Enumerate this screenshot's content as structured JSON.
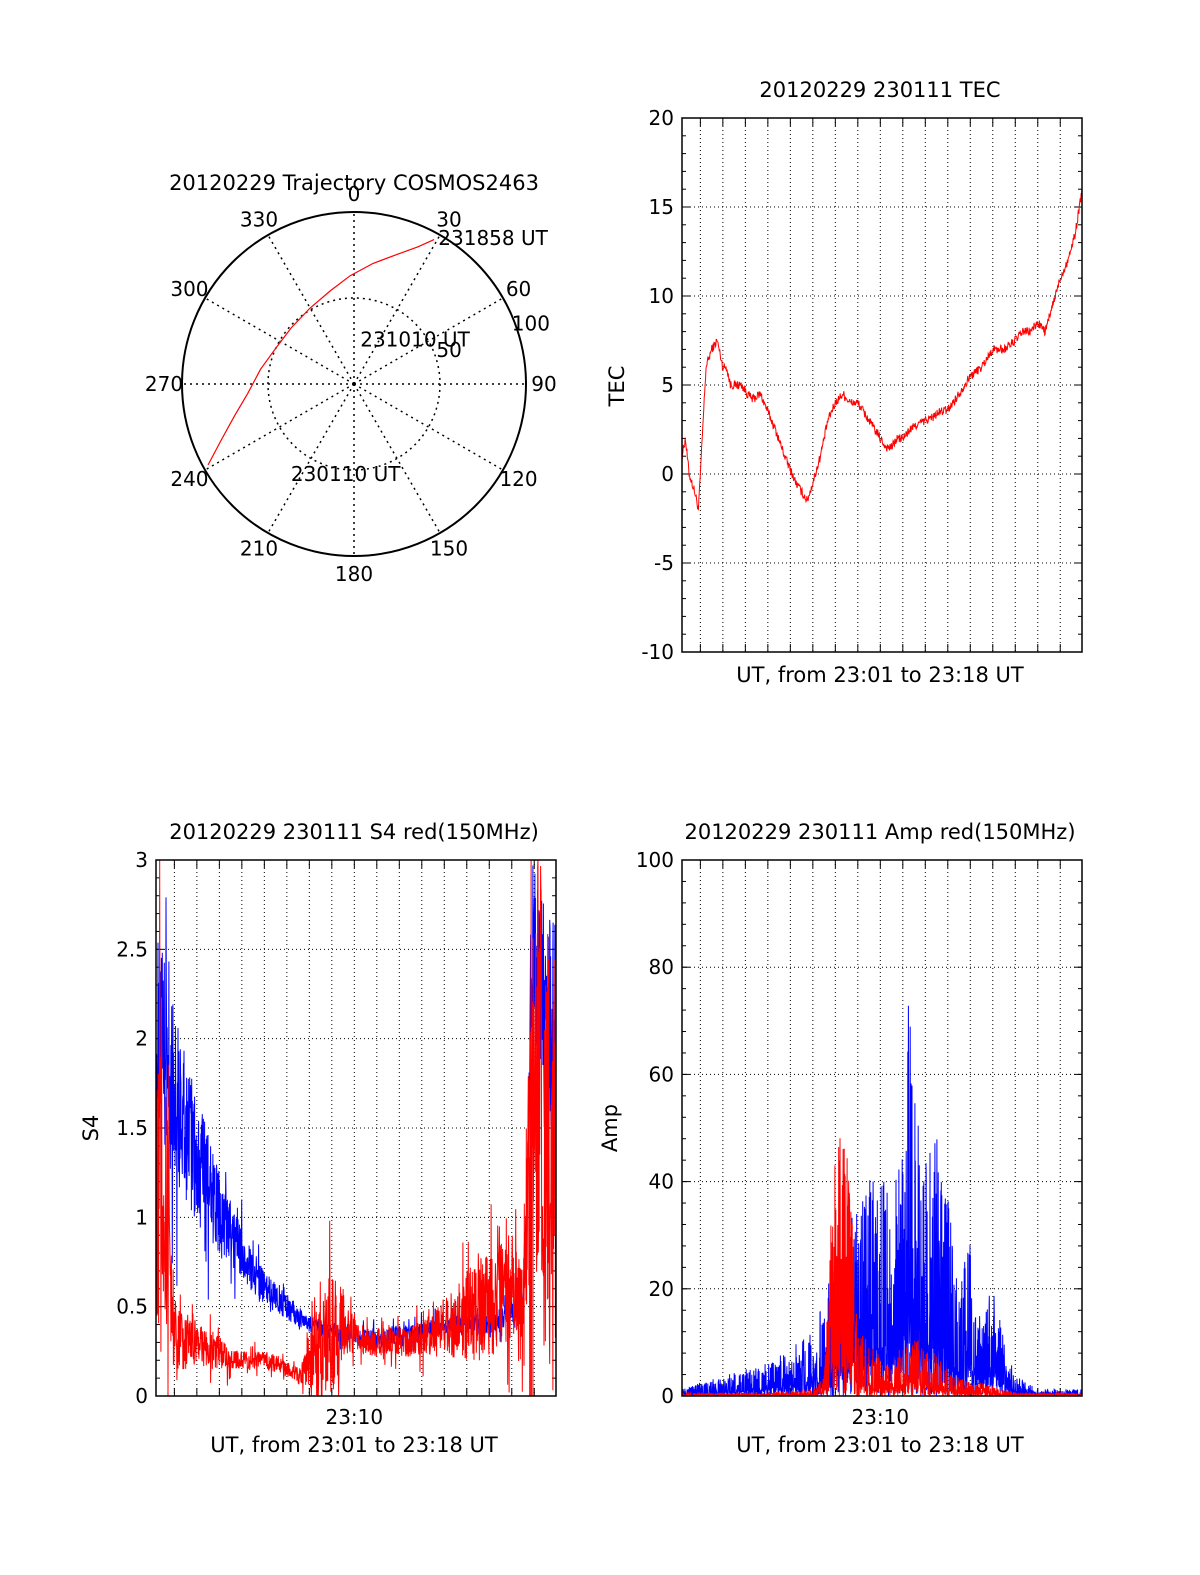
{
  "chart_data": [
    {
      "type": "polar",
      "title": "20120229 Trajectory COSMOS2463",
      "angle_ticks": [
        0,
        30,
        60,
        90,
        120,
        150,
        180,
        210,
        240,
        270,
        300,
        330
      ],
      "angle_labels": [
        "0",
        "30",
        "60",
        "90",
        "120",
        "150",
        "180",
        "210",
        "240",
        "270",
        "300",
        "330"
      ],
      "radial_ticks": [
        50,
        100
      ],
      "radial_labels": [
        "50",
        "100"
      ],
      "rlim": [
        0,
        100
      ],
      "grid": true,
      "series": [
        {
          "color": "#ff0000",
          "points": [
            {
              "az": 241,
              "zen": 97
            },
            {
              "az": 247,
              "zen": 84
            },
            {
              "az": 255,
              "zen": 72
            },
            {
              "az": 265,
              "zen": 62
            },
            {
              "az": 279,
              "zen": 55
            },
            {
              "az": 295,
              "zen": 50
            },
            {
              "az": 312,
              "zen": 49
            },
            {
              "az": 330,
              "zen": 51
            },
            {
              "az": 346,
              "zen": 56
            },
            {
              "az": 358,
              "zen": 63
            },
            {
              "az": 9,
              "zen": 71
            },
            {
              "az": 18,
              "zen": 79
            },
            {
              "az": 25,
              "zen": 88
            },
            {
              "az": 29,
              "zen": 96
            }
          ]
        }
      ],
      "annotations": [
        {
          "text": "231858 UT",
          "az": 30,
          "zen": 98
        },
        {
          "text": "231010 UT",
          "az": 8,
          "zen": 26
        },
        {
          "text": "230110 UT",
          "az": 215,
          "zen": 64
        }
      ]
    },
    {
      "type": "line",
      "title": "20120229 230111 TEC",
      "xlabel": "UT, from 23:01 to 23:18 UT",
      "ylabel": "TEC",
      "xlim": [
        "23:01:11",
        "23:18:58"
      ],
      "ylim": [
        -10,
        20
      ],
      "yticks": [
        -10,
        -5,
        0,
        5,
        10,
        15,
        20
      ],
      "grid": true,
      "series": [
        {
          "color": "#ff0000",
          "x": [
            "23:01:11",
            "23:01:20",
            "23:01:30",
            "23:01:45",
            "23:01:55",
            "23:02:05",
            "23:02:15",
            "23:02:30",
            "23:02:45",
            "23:03:00",
            "23:03:10",
            "23:03:20",
            "23:03:35",
            "23:03:50",
            "23:04:05",
            "23:04:20",
            "23:04:40",
            "23:05:00",
            "23:05:20",
            "23:05:45",
            "23:06:15",
            "23:06:45",
            "23:07:00",
            "23:07:20",
            "23:07:40",
            "23:08:00",
            "23:08:20",
            "23:08:40",
            "23:09:00",
            "23:09:15",
            "23:09:30",
            "23:09:45",
            "23:10:00",
            "23:10:15",
            "23:10:30",
            "23:10:45",
            "23:11:00",
            "23:11:20",
            "23:11:40",
            "23:12:00",
            "23:12:20",
            "23:12:40",
            "23:13:00",
            "23:13:30",
            "23:14:00",
            "23:14:30",
            "23:15:00",
            "23:15:30",
            "23:16:00",
            "23:16:20",
            "23:16:40",
            "23:17:00",
            "23:17:20",
            "23:17:40",
            "23:18:00",
            "23:18:20",
            "23:18:40",
            "23:18:58"
          ],
          "values": [
            1,
            2,
            0,
            -1,
            -2,
            2,
            6,
            7,
            7.5,
            6,
            6,
            5,
            5,
            5,
            4.5,
            4.2,
            4.5,
            3.5,
            2.5,
            1,
            -0.5,
            -1.5,
            -0.5,
            1,
            3,
            4,
            4.5,
            4,
            4,
            3.5,
            3,
            2.5,
            2,
            1.5,
            1.5,
            2,
            2,
            2.5,
            2.8,
            3,
            3.2,
            3.5,
            3.6,
            4.5,
            5.5,
            6,
            7,
            7,
            7.5,
            8,
            8,
            8.5,
            8,
            9.5,
            11,
            12,
            13.5,
            16
          ]
        }
      ]
    },
    {
      "type": "line",
      "title": "20120229 230111 S4 red(150MHz)",
      "xlabel": "UT, from 23:01 to 23:18 UT",
      "ylabel": "S4",
      "xlim": [
        "23:01:11",
        "23:18:58"
      ],
      "ylim": [
        0,
        3
      ],
      "yticks": [
        0,
        0.5,
        1,
        1.5,
        2,
        2.5,
        3
      ],
      "xticks": [
        "23:10"
      ],
      "grid": true,
      "series": [
        {
          "color": "#0000ff",
          "x": [
            "23:01:11",
            "23:01:30",
            "23:02:00",
            "23:02:30",
            "23:03:00",
            "23:03:30",
            "23:04:00",
            "23:04:30",
            "23:05:00",
            "23:05:30",
            "23:06:00",
            "23:06:30",
            "23:07:00",
            "23:07:30",
            "23:08:00",
            "23:08:30",
            "23:09:00",
            "23:09:30",
            "23:10:00",
            "23:10:30",
            "23:11:00",
            "23:11:30",
            "23:12:00",
            "23:12:30",
            "23:13:00",
            "23:13:30",
            "23:14:00",
            "23:14:30",
            "23:15:00",
            "23:15:30",
            "23:16:00",
            "23:16:30",
            "23:17:00",
            "23:17:30",
            "23:18:00",
            "23:18:30",
            "23:18:58"
          ],
          "values": [
            2.0,
            1.9,
            1.7,
            1.5,
            1.3,
            1.2,
            1.0,
            0.9,
            0.8,
            0.7,
            0.6,
            0.55,
            0.5,
            0.45,
            0.4,
            0.38,
            0.35,
            0.35,
            0.33,
            0.32,
            0.32,
            0.33,
            0.35,
            0.35,
            0.36,
            0.38,
            0.38,
            0.4,
            0.4,
            0.42,
            0.4,
            0.42,
            0.45,
            0.5,
            2.5,
            2.2,
            2.0
          ],
          "spread": [
            0.6,
            0.6,
            0.5,
            0.4,
            0.35,
            0.3,
            0.25,
            0.2,
            0.15,
            0.12,
            0.1,
            0.08,
            0.07,
            0.06,
            0.05,
            0.05,
            0.05,
            0.05,
            0.05,
            0.05,
            0.05,
            0.05,
            0.05,
            0.05,
            0.05,
            0.05,
            0.05,
            0.05,
            0.05,
            0.05,
            0.06,
            0.07,
            0.08,
            0.1,
            0.5,
            0.6,
            0.6
          ]
        },
        {
          "color": "#ff0000",
          "x": [
            "23:01:11",
            "23:01:30",
            "23:02:00",
            "23:02:30",
            "23:03:00",
            "23:03:30",
            "23:04:00",
            "23:04:30",
            "23:05:00",
            "23:05:30",
            "23:06:00",
            "23:06:30",
            "23:07:00",
            "23:07:30",
            "23:08:00",
            "23:08:30",
            "23:09:00",
            "23:09:30",
            "23:10:00",
            "23:10:30",
            "23:11:00",
            "23:11:30",
            "23:12:00",
            "23:12:30",
            "23:13:00",
            "23:13:30",
            "23:14:00",
            "23:14:30",
            "23:15:00",
            "23:15:30",
            "23:16:00",
            "23:16:30",
            "23:17:00",
            "23:17:30",
            "23:18:00",
            "23:18:30",
            "23:18:58"
          ],
          "values": [
            1.5,
            1.2,
            0.35,
            0.3,
            0.3,
            0.25,
            0.25,
            0.2,
            0.2,
            0.2,
            0.2,
            0.18,
            0.15,
            0.12,
            0.2,
            0.3,
            0.35,
            0.4,
            0.35,
            0.3,
            0.3,
            0.32,
            0.3,
            0.3,
            0.33,
            0.35,
            0.4,
            0.4,
            0.45,
            0.5,
            0.5,
            0.55,
            0.6,
            0.5,
            2.0,
            1.5,
            1.0
          ],
          "spread": [
            1.2,
            0.9,
            0.2,
            0.15,
            0.12,
            0.1,
            0.1,
            0.06,
            0.05,
            0.05,
            0.05,
            0.05,
            0.04,
            0.04,
            0.15,
            0.35,
            0.35,
            0.2,
            0.1,
            0.08,
            0.08,
            0.08,
            0.08,
            0.08,
            0.1,
            0.12,
            0.15,
            0.2,
            0.25,
            0.3,
            0.3,
            0.3,
            0.3,
            0.4,
            1.2,
            1.3,
            1.2
          ]
        }
      ]
    },
    {
      "type": "line",
      "title": "20120229 230111 Amp red(150MHz)",
      "xlabel": "UT, from 23:01 to 23:18 UT",
      "ylabel": "Amp",
      "xlim": [
        "23:01:11",
        "23:18:58"
      ],
      "ylim": [
        0,
        100
      ],
      "yticks": [
        0,
        20,
        40,
        60,
        80,
        100
      ],
      "xticks": [
        "23:10"
      ],
      "grid": true,
      "series": [
        {
          "color": "#0000ff",
          "x": [
            "23:01:11",
            "23:02:00",
            "23:03:00",
            "23:04:00",
            "23:05:00",
            "23:06:00",
            "23:07:00",
            "23:07:30",
            "23:08:00",
            "23:08:30",
            "23:09:00",
            "23:09:30",
            "23:10:00",
            "23:10:30",
            "23:11:00",
            "23:11:15",
            "23:11:30",
            "23:12:00",
            "23:12:30",
            "23:13:00",
            "23:13:30",
            "23:14:00",
            "23:14:30",
            "23:15:00",
            "23:15:30",
            "23:16:00",
            "23:16:30",
            "23:17:00",
            "23:17:30",
            "23:18:00",
            "23:18:30",
            "23:18:58"
          ],
          "values": [
            1,
            2,
            3,
            4,
            5,
            7,
            10,
            15,
            20,
            25,
            30,
            32,
            35,
            30,
            40,
            60,
            45,
            35,
            40,
            30,
            15,
            25,
            10,
            18,
            8,
            3,
            2,
            1,
            1,
            1,
            1,
            1
          ]
        },
        {
          "color": "#ff0000",
          "x": [
            "23:01:11",
            "23:02:00",
            "23:03:00",
            "23:04:00",
            "23:05:00",
            "23:06:00",
            "23:07:00",
            "23:07:30",
            "23:08:00",
            "23:08:30",
            "23:09:00",
            "23:09:30",
            "23:10:00",
            "23:10:30",
            "23:11:00",
            "23:11:30",
            "23:12:00",
            "23:12:30",
            "23:13:00",
            "23:13:30",
            "23:14:00",
            "23:14:30",
            "23:15:00",
            "23:15:30",
            "23:16:00",
            "23:16:30",
            "23:17:00",
            "23:17:30",
            "23:18:00",
            "23:18:30",
            "23:18:58"
          ],
          "values": [
            0.5,
            0.5,
            0.5,
            0.5,
            0.5,
            0.8,
            1,
            3,
            40,
            45,
            10,
            8,
            6,
            5,
            8,
            9,
            8,
            6,
            4,
            3,
            2,
            2,
            1.5,
            1,
            0.5,
            0.5,
            0.5,
            0.5,
            0.5,
            0.5,
            0.5
          ]
        }
      ]
    }
  ]
}
